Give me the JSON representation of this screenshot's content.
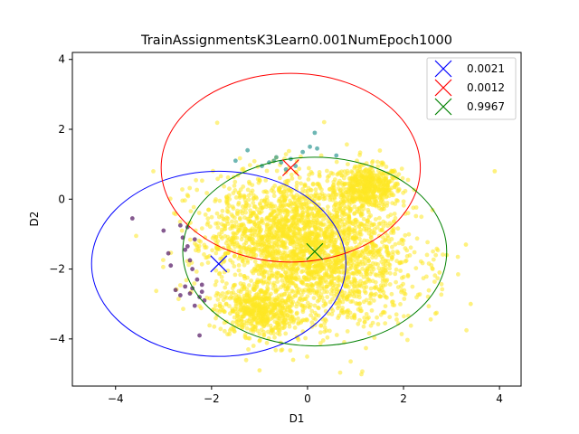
{
  "chart_data": {
    "type": "scatter",
    "title": "TrainAssignmentsK3Learn0.001NumEpoch1000",
    "xlabel": "D1",
    "ylabel": "D2",
    "xlim": [
      -4.9,
      4.45
    ],
    "ylim": [
      -5.35,
      4.2
    ],
    "xticks": [
      "−4",
      "−2",
      "0",
      "2",
      "4"
    ],
    "yticks": [
      "−4",
      "−2",
      "0",
      "2",
      "4"
    ],
    "xtick_values": [
      -4,
      -2,
      0,
      2,
      4
    ],
    "ytick_values": [
      -4,
      -2,
      0,
      2,
      4
    ],
    "grid": false,
    "legend_placement": "top-right",
    "clusters": [
      {
        "legend": "0.0021",
        "color": "#0000ff",
        "point_color": "#440154",
        "center": [
          -1.85,
          -1.85
        ],
        "radius": [
          2.65,
          2.65
        ],
        "points": [
          [
            -3.65,
            -0.55
          ],
          [
            -3.0,
            -0.9
          ],
          [
            -2.9,
            -1.55
          ],
          [
            -2.65,
            -0.75
          ],
          [
            -2.6,
            -1.1
          ],
          [
            -2.55,
            -1.45
          ],
          [
            -2.5,
            -0.8
          ],
          [
            -2.4,
            -2.0
          ],
          [
            -2.35,
            -1.15
          ],
          [
            -2.85,
            -1.9
          ],
          [
            -2.75,
            -2.6
          ],
          [
            -2.65,
            -2.75
          ],
          [
            -2.55,
            -2.5
          ],
          [
            -2.45,
            -2.7
          ],
          [
            -2.4,
            -2.55
          ],
          [
            -2.3,
            -2.3
          ],
          [
            -2.25,
            -2.8
          ],
          [
            -2.35,
            -3.05
          ],
          [
            -2.2,
            -2.45
          ],
          [
            -2.2,
            -2.65
          ],
          [
            -2.25,
            -3.9
          ],
          [
            -2.15,
            -2.9
          ],
          [
            -2.5,
            -1.35
          ],
          [
            -2.45,
            -1.75
          ]
        ]
      },
      {
        "legend": "0.0012",
        "color": "#ff0000",
        "point_color": "#21918c",
        "center": [
          -0.35,
          0.9
        ],
        "radius": [
          2.7,
          2.7
        ],
        "points": [
          [
            0.15,
            1.9
          ],
          [
            0.2,
            1.45
          ],
          [
            0.05,
            1.5
          ],
          [
            -0.55,
            1.05
          ],
          [
            -0.65,
            1.2
          ],
          [
            -0.25,
            0.95
          ],
          [
            -0.45,
            0.85
          ],
          [
            -1.25,
            1.4
          ],
          [
            -1.5,
            1.1
          ],
          [
            -0.8,
            1.05
          ],
          [
            0.6,
            1.25
          ],
          [
            -0.1,
            1.35
          ],
          [
            -0.35,
            1.15
          ],
          [
            -0.7,
            1.1
          ],
          [
            -0.95,
            0.95
          ]
        ]
      },
      {
        "legend": "0.9967",
        "color": "#008000",
        "point_color": "#fde725",
        "center": [
          0.15,
          -1.5
        ],
        "radius": [
          2.75,
          2.7
        ],
        "points": []
      }
    ]
  }
}
